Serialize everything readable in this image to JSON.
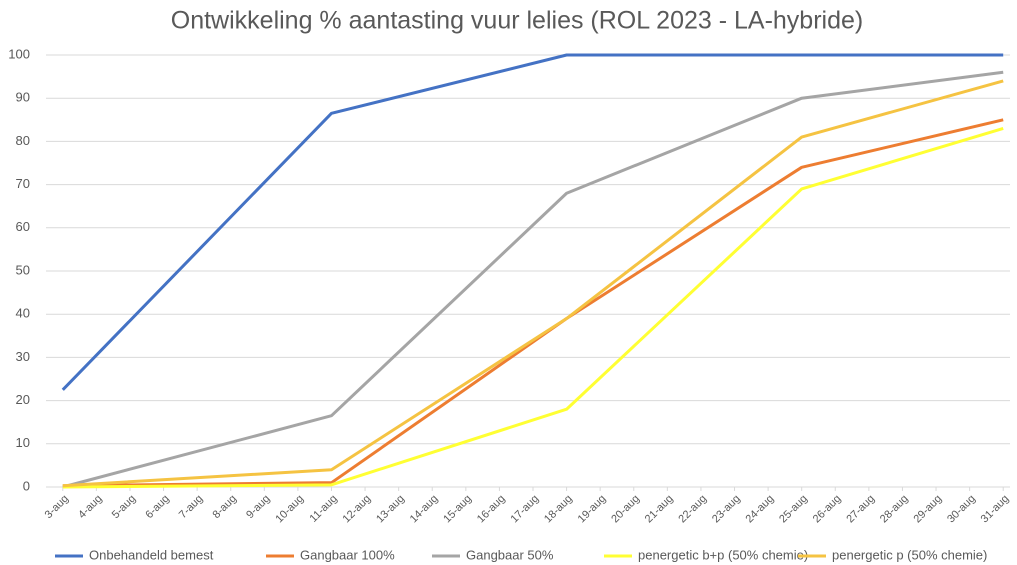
{
  "chart_data": {
    "type": "line",
    "title": "Ontwikkeling % aantasting vuur lelies (ROL 2023 - LA-hybride)",
    "xlim": [
      2.5,
      31.5
    ],
    "xticks": [
      {
        "value": 3,
        "label": "3-aug"
      },
      {
        "value": 4,
        "label": "4-aug"
      },
      {
        "value": 5,
        "label": "5-aug"
      },
      {
        "value": 6,
        "label": "6-aug"
      },
      {
        "value": 7,
        "label": "7-aug"
      },
      {
        "value": 8,
        "label": "8-aug"
      },
      {
        "value": 9,
        "label": "9-aug"
      },
      {
        "value": 10,
        "label": "10-aug"
      },
      {
        "value": 11,
        "label": "11-aug"
      },
      {
        "value": 12,
        "label": "12-aug"
      },
      {
        "value": 13,
        "label": "13-aug"
      },
      {
        "value": 14,
        "label": "14-aug"
      },
      {
        "value": 15,
        "label": "15-aug"
      },
      {
        "value": 16,
        "label": "16-aug"
      },
      {
        "value": 17,
        "label": "17-aug"
      },
      {
        "value": 18,
        "label": "18-aug"
      },
      {
        "value": 19,
        "label": "19-aug"
      },
      {
        "value": 20,
        "label": "20-aug"
      },
      {
        "value": 21,
        "label": "21-aug"
      },
      {
        "value": 22,
        "label": "22-aug"
      },
      {
        "value": 23,
        "label": "23-aug"
      },
      {
        "value": 24,
        "label": "24-aug"
      },
      {
        "value": 25,
        "label": "25-aug"
      },
      {
        "value": 26,
        "label": "26-aug"
      },
      {
        "value": 27,
        "label": "27-aug"
      },
      {
        "value": 28,
        "label": "28-aug"
      },
      {
        "value": 29,
        "label": "29-aug"
      },
      {
        "value": 30,
        "label": "30-aug"
      },
      {
        "value": 31,
        "label": "31-aug"
      }
    ],
    "ylim": [
      0,
      100
    ],
    "yticks": [
      0,
      10,
      20,
      30,
      40,
      50,
      60,
      70,
      80,
      90,
      100
    ],
    "grid": true,
    "legend": "bottom",
    "x": [
      3,
      11,
      18,
      25,
      31
    ],
    "series": [
      {
        "name": "Onbehandeld bemest",
        "color": "#4472c4",
        "values": [
          22.5,
          86.5,
          100,
          100,
          100
        ]
      },
      {
        "name": "Gangbaar 100%",
        "color": "#ed7d31",
        "values": [
          0.3,
          1,
          39,
          74,
          85
        ]
      },
      {
        "name": "Gangbaar 50%",
        "color": "#a5a5a5",
        "values": [
          0,
          16.5,
          68,
          90,
          96
        ]
      },
      {
        "name": "penergetic b+p (50% chemie)",
        "color": "#ffff33",
        "values": [
          0,
          0.5,
          18,
          69,
          83
        ]
      },
      {
        "name": "penergetic p (50% chemie)",
        "color": "#f5c342",
        "values": [
          0.3,
          4,
          39,
          81,
          94
        ]
      }
    ]
  }
}
